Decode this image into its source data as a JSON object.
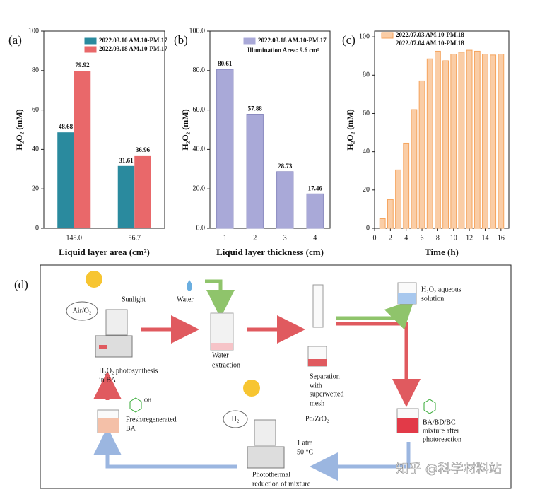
{
  "chart_data": [
    {
      "type": "bar",
      "panel_label": "(a)",
      "y_label": "H₂O₂ (mM)",
      "x_label": "Liquid layer area (cm²)",
      "categories": [
        "145.0",
        "56.7"
      ],
      "series": [
        {
          "name": "2022.03.10 AM.10-PM.17",
          "color": "#2a8a9e",
          "values": [
            48.68,
            31.61
          ]
        },
        {
          "name": "2022.03.18 AM.10-PM.17",
          "color": "#e9686a",
          "values": [
            79.92,
            36.96
          ]
        }
      ],
      "ylim": [
        0,
        100
      ],
      "yticks": [
        0,
        20,
        40,
        60,
        80,
        100
      ],
      "data_labels": true,
      "legend": "upper right"
    },
    {
      "type": "bar",
      "panel_label": "(b)",
      "y_label": "H₂O₂ (mM)",
      "x_label": "Liquid layer thickness (cm)",
      "annotation": "Illumination Area: 9.6 cm²",
      "categories": [
        "1",
        "2",
        "3",
        "4"
      ],
      "series": [
        {
          "name": "2022.03.18 AM.10-PM.17",
          "color": "#a9a9d8",
          "values": [
            80.61,
            57.88,
            28.73,
            17.46
          ]
        }
      ],
      "ylim": [
        0,
        100
      ],
      "yticks": [
        {
          "value": 0,
          "label": "0.0"
        },
        {
          "value": 20,
          "label": "20.0"
        },
        {
          "value": 40,
          "label": "40.0"
        },
        {
          "value": 60,
          "label": "60.0"
        },
        {
          "value": 80,
          "label": "80.0"
        },
        {
          "value": 100,
          "label": "100.0"
        }
      ],
      "data_labels": true,
      "legend": "upper right"
    },
    {
      "type": "bar",
      "panel_label": "(c)",
      "y_label": "H₂O₂ (mM)",
      "x_label": "Time (h)",
      "x": [
        1,
        2,
        3,
        4,
        5,
        6,
        7,
        8,
        9,
        10,
        11,
        12,
        13,
        14,
        15,
        16
      ],
      "series": [
        {
          "name": "2022.07.03 AM.10-PM.18",
          "legend_extra": "2022.07.04 AM.10-PM.18",
          "color": "#f5a45d",
          "values": [
            5,
            15,
            30.5,
            44.5,
            62,
            77,
            88.5,
            92.5,
            87.5,
            91,
            92,
            93,
            92.5,
            91,
            90.5,
            91
          ]
        }
      ],
      "xlim": [
        0,
        17
      ],
      "xticks": [
        0,
        2,
        4,
        6,
        8,
        10,
        12,
        14,
        16
      ],
      "ylim": [
        0,
        103
      ],
      "yticks": [
        0,
        20,
        40,
        60,
        80,
        100
      ],
      "data_labels": false,
      "legend": "upper left"
    }
  ],
  "diagram": {
    "panel_label": "(d)",
    "labels": [
      "Sunlight",
      "Air/O₂",
      "Water",
      "Water",
      "extraction",
      "H₂O₂ photosynthesis",
      "in BA",
      "Separation",
      "with",
      "superwetted",
      "mesh",
      "H₂O₂ aqueous",
      "solution",
      "BA/BD/BC",
      "mixture after",
      "photoreaction",
      "Fresh/regenerated",
      "BA",
      "H₂",
      "Pd/ZrO₂",
      "1 atm",
      "50 °C",
      "Photothermal",
      "reduction of mixture",
      "OH",
      "知乎 @科学材料站"
    ]
  }
}
